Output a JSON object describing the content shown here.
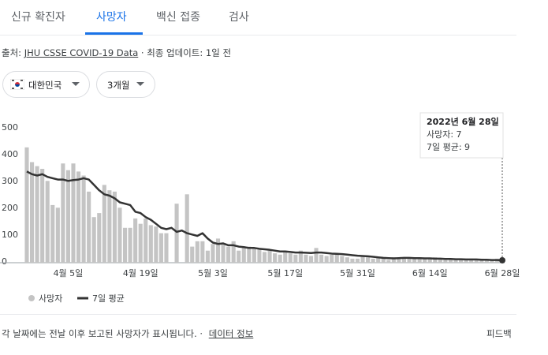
{
  "tabs": [
    "신규 확진자",
    "사망자",
    "백신 접종",
    "검사"
  ],
  "source": {
    "prefix": "출처:",
    "link": "JHU CSSE COVID-19 Data",
    "updated": "· 최종 업데이트: 1일 전"
  },
  "filters": [
    "대한민국",
    "3개월"
  ],
  "tooltip": {
    "date": "2022년 6월 28일",
    "lines": [
      "사망자: 7",
      "7일 평균: 9"
    ]
  },
  "footer": {
    "note": "각 날짜에는 전날 이후 보고된 사망자가 표시됩니다. ·",
    "link": "데이터 정보",
    "feedback": "피드백"
  },
  "chart_data": {
    "type": "bar",
    "categories": [
      null,
      null,
      null,
      null,
      null,
      null,
      null,
      null,
      "4월 5일",
      null,
      null,
      null,
      null,
      null,
      null,
      null,
      null,
      null,
      null,
      null,
      null,
      null,
      "4월 19일",
      null,
      null,
      null,
      null,
      null,
      null,
      null,
      null,
      null,
      null,
      null,
      null,
      null,
      "5월 3일",
      null,
      null,
      null,
      null,
      null,
      null,
      null,
      null,
      null,
      null,
      null,
      null,
      null,
      "5월 17일",
      null,
      null,
      null,
      null,
      null,
      null,
      null,
      null,
      null,
      null,
      null,
      null,
      null,
      "5월 31일",
      null,
      null,
      null,
      null,
      null,
      null,
      null,
      null,
      null,
      null,
      null,
      null,
      null,
      "6월 14일",
      null,
      null,
      null,
      null,
      null,
      null,
      null,
      null,
      null,
      null,
      null,
      null,
      null,
      "6월 28일"
    ],
    "series": [
      {
        "name": "사망자",
        "type": "bar",
        "color": "#c4c4c4",
        "values": [
          430,
          375,
          360,
          350,
          305,
          215,
          205,
          370,
          345,
          370,
          340,
          325,
          265,
          170,
          185,
          290,
          270,
          265,
          205,
          130,
          130,
          165,
          145,
          165,
          140,
          135,
          110,
          110,
          null,
          220,
          null,
          255,
          60,
          80,
          80,
          45,
          70,
          90,
          70,
          60,
          80,
          45,
          60,
          60,
          55,
          50,
          40,
          45,
          35,
          30,
          40,
          35,
          30,
          45,
          30,
          25,
          55,
          30,
          25,
          30,
          35,
          25,
          20,
          15,
          15,
          25,
          20,
          15,
          20,
          15,
          10,
          20,
          15,
          20,
          20,
          15,
          20,
          15,
          15,
          20,
          15,
          10,
          15,
          15,
          10,
          15,
          15,
          10,
          15,
          10,
          10,
          15,
          7
        ]
      },
      {
        "name": "7일 평균",
        "type": "line",
        "color": "#333333",
        "values": [
          340,
          330,
          325,
          330,
          320,
          315,
          310,
          310,
          305,
          308,
          310,
          315,
          310,
          290,
          270,
          255,
          250,
          240,
          225,
          220,
          215,
          190,
          185,
          170,
          160,
          145,
          130,
          125,
          130,
          115,
          120,
          110,
          105,
          100,
          110,
          90,
          75,
          70,
          72,
          65,
          65,
          60,
          58,
          55,
          55,
          52,
          50,
          48,
          45,
          42,
          42,
          40,
          38,
          38,
          37,
          36,
          38,
          38,
          36,
          34,
          33,
          32,
          30,
          28,
          26,
          25,
          24,
          22,
          20,
          18,
          17,
          16,
          17,
          18,
          18,
          17,
          17,
          16,
          16,
          15,
          15,
          14,
          14,
          13,
          13,
          12,
          12,
          12,
          11,
          11,
          10,
          10,
          9
        ]
      }
    ],
    "ylim": [
      0,
      500
    ],
    "yticks": [
      0,
      100,
      200,
      300,
      400,
      500
    ],
    "grid": false
  }
}
